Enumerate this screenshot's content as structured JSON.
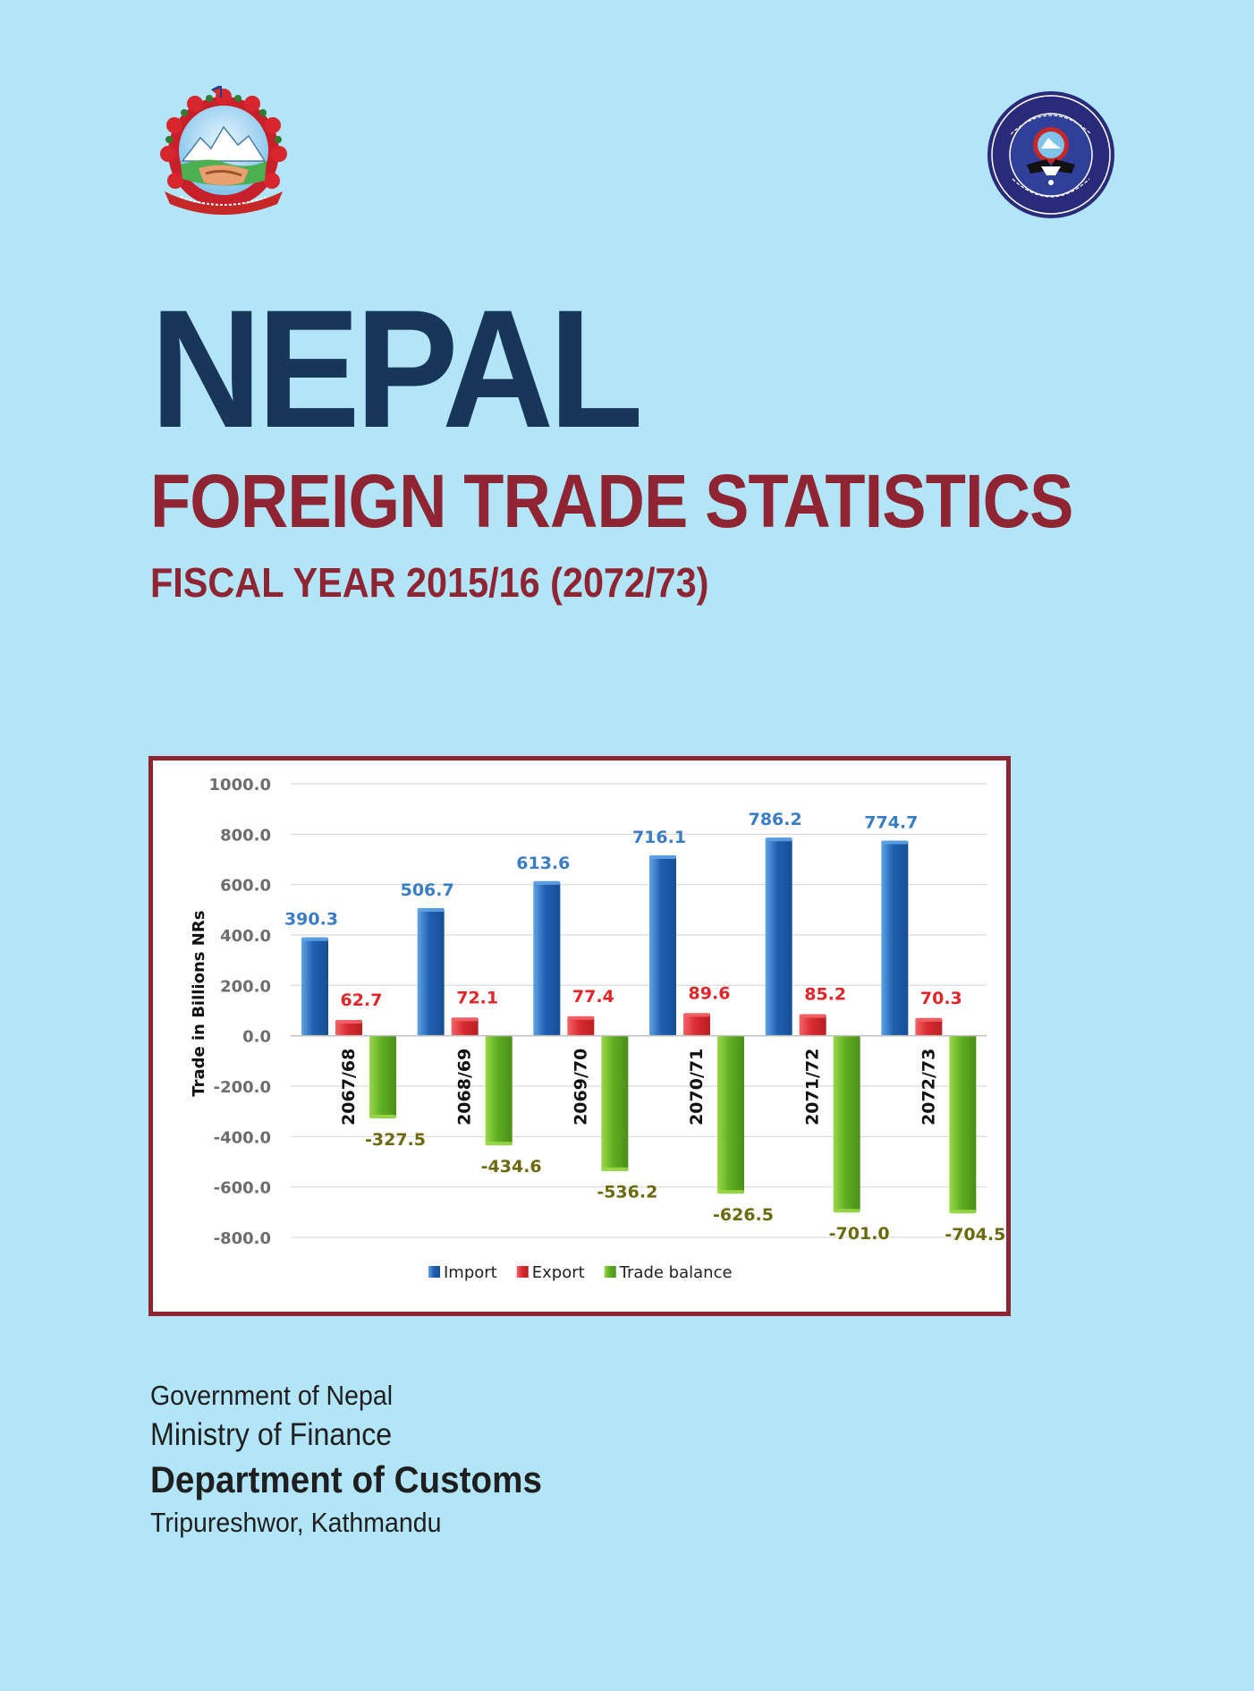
{
  "header": {
    "title": "NEPAL",
    "subtitle": "FOREIGN TRADE STATISTICS",
    "fiscal_year": "FISCAL YEAR 2015/16 (2072/73)"
  },
  "emblems": {
    "left": "government-of-nepal-emblem",
    "right": "nepal-customs-seal"
  },
  "colors": {
    "background": "#b3e5f9",
    "title": "#18365a",
    "accent": "#8f2532",
    "import": "#2f6fbd",
    "export": "#e03a3e",
    "trade_balance": "#6dbb2d"
  },
  "chart_data": {
    "type": "bar",
    "ylabel": "Trade in Billions NRs",
    "ylim": [
      -800,
      1000
    ],
    "yticks": [
      1000,
      800,
      600,
      400,
      200,
      0,
      -200,
      -400,
      -600,
      -800
    ],
    "ytick_labels": [
      "1000.0",
      "800.0",
      "600.0",
      "400.0",
      "200.0",
      "0.0",
      "-200.0",
      "-400.0",
      "-600.0",
      "-800.0"
    ],
    "grid": true,
    "legend_position": "bottom",
    "categories": [
      "2067/68",
      "2068/69",
      "2069/70",
      "2070/71",
      "2071/72",
      "2072/73"
    ],
    "series": [
      {
        "name": "Import",
        "values": [
          390.3,
          506.7,
          613.6,
          716.1,
          786.2,
          774.7
        ],
        "labels": [
          "390.3",
          "506.7",
          "613.6",
          "716.1",
          "786.2",
          "774.7"
        ]
      },
      {
        "name": "Export",
        "values": [
          62.7,
          72.1,
          77.4,
          89.6,
          85.2,
          70.3
        ],
        "labels": [
          "62.7",
          "72.1",
          "77.4",
          "89.6",
          "85.2",
          "70.3"
        ]
      },
      {
        "name": "Trade balance",
        "values": [
          -327.5,
          -434.6,
          -536.2,
          -626.5,
          -701.0,
          -704.5
        ],
        "labels": [
          "-327.5",
          "-434.6",
          "-536.2",
          "-626.5",
          "-701.0",
          "-704.5"
        ]
      }
    ]
  },
  "footer": {
    "government": "Government of Nepal",
    "ministry": "Ministry of Finance",
    "department": "Department of Customs",
    "location": "Tripureshwor, Kathmandu"
  }
}
